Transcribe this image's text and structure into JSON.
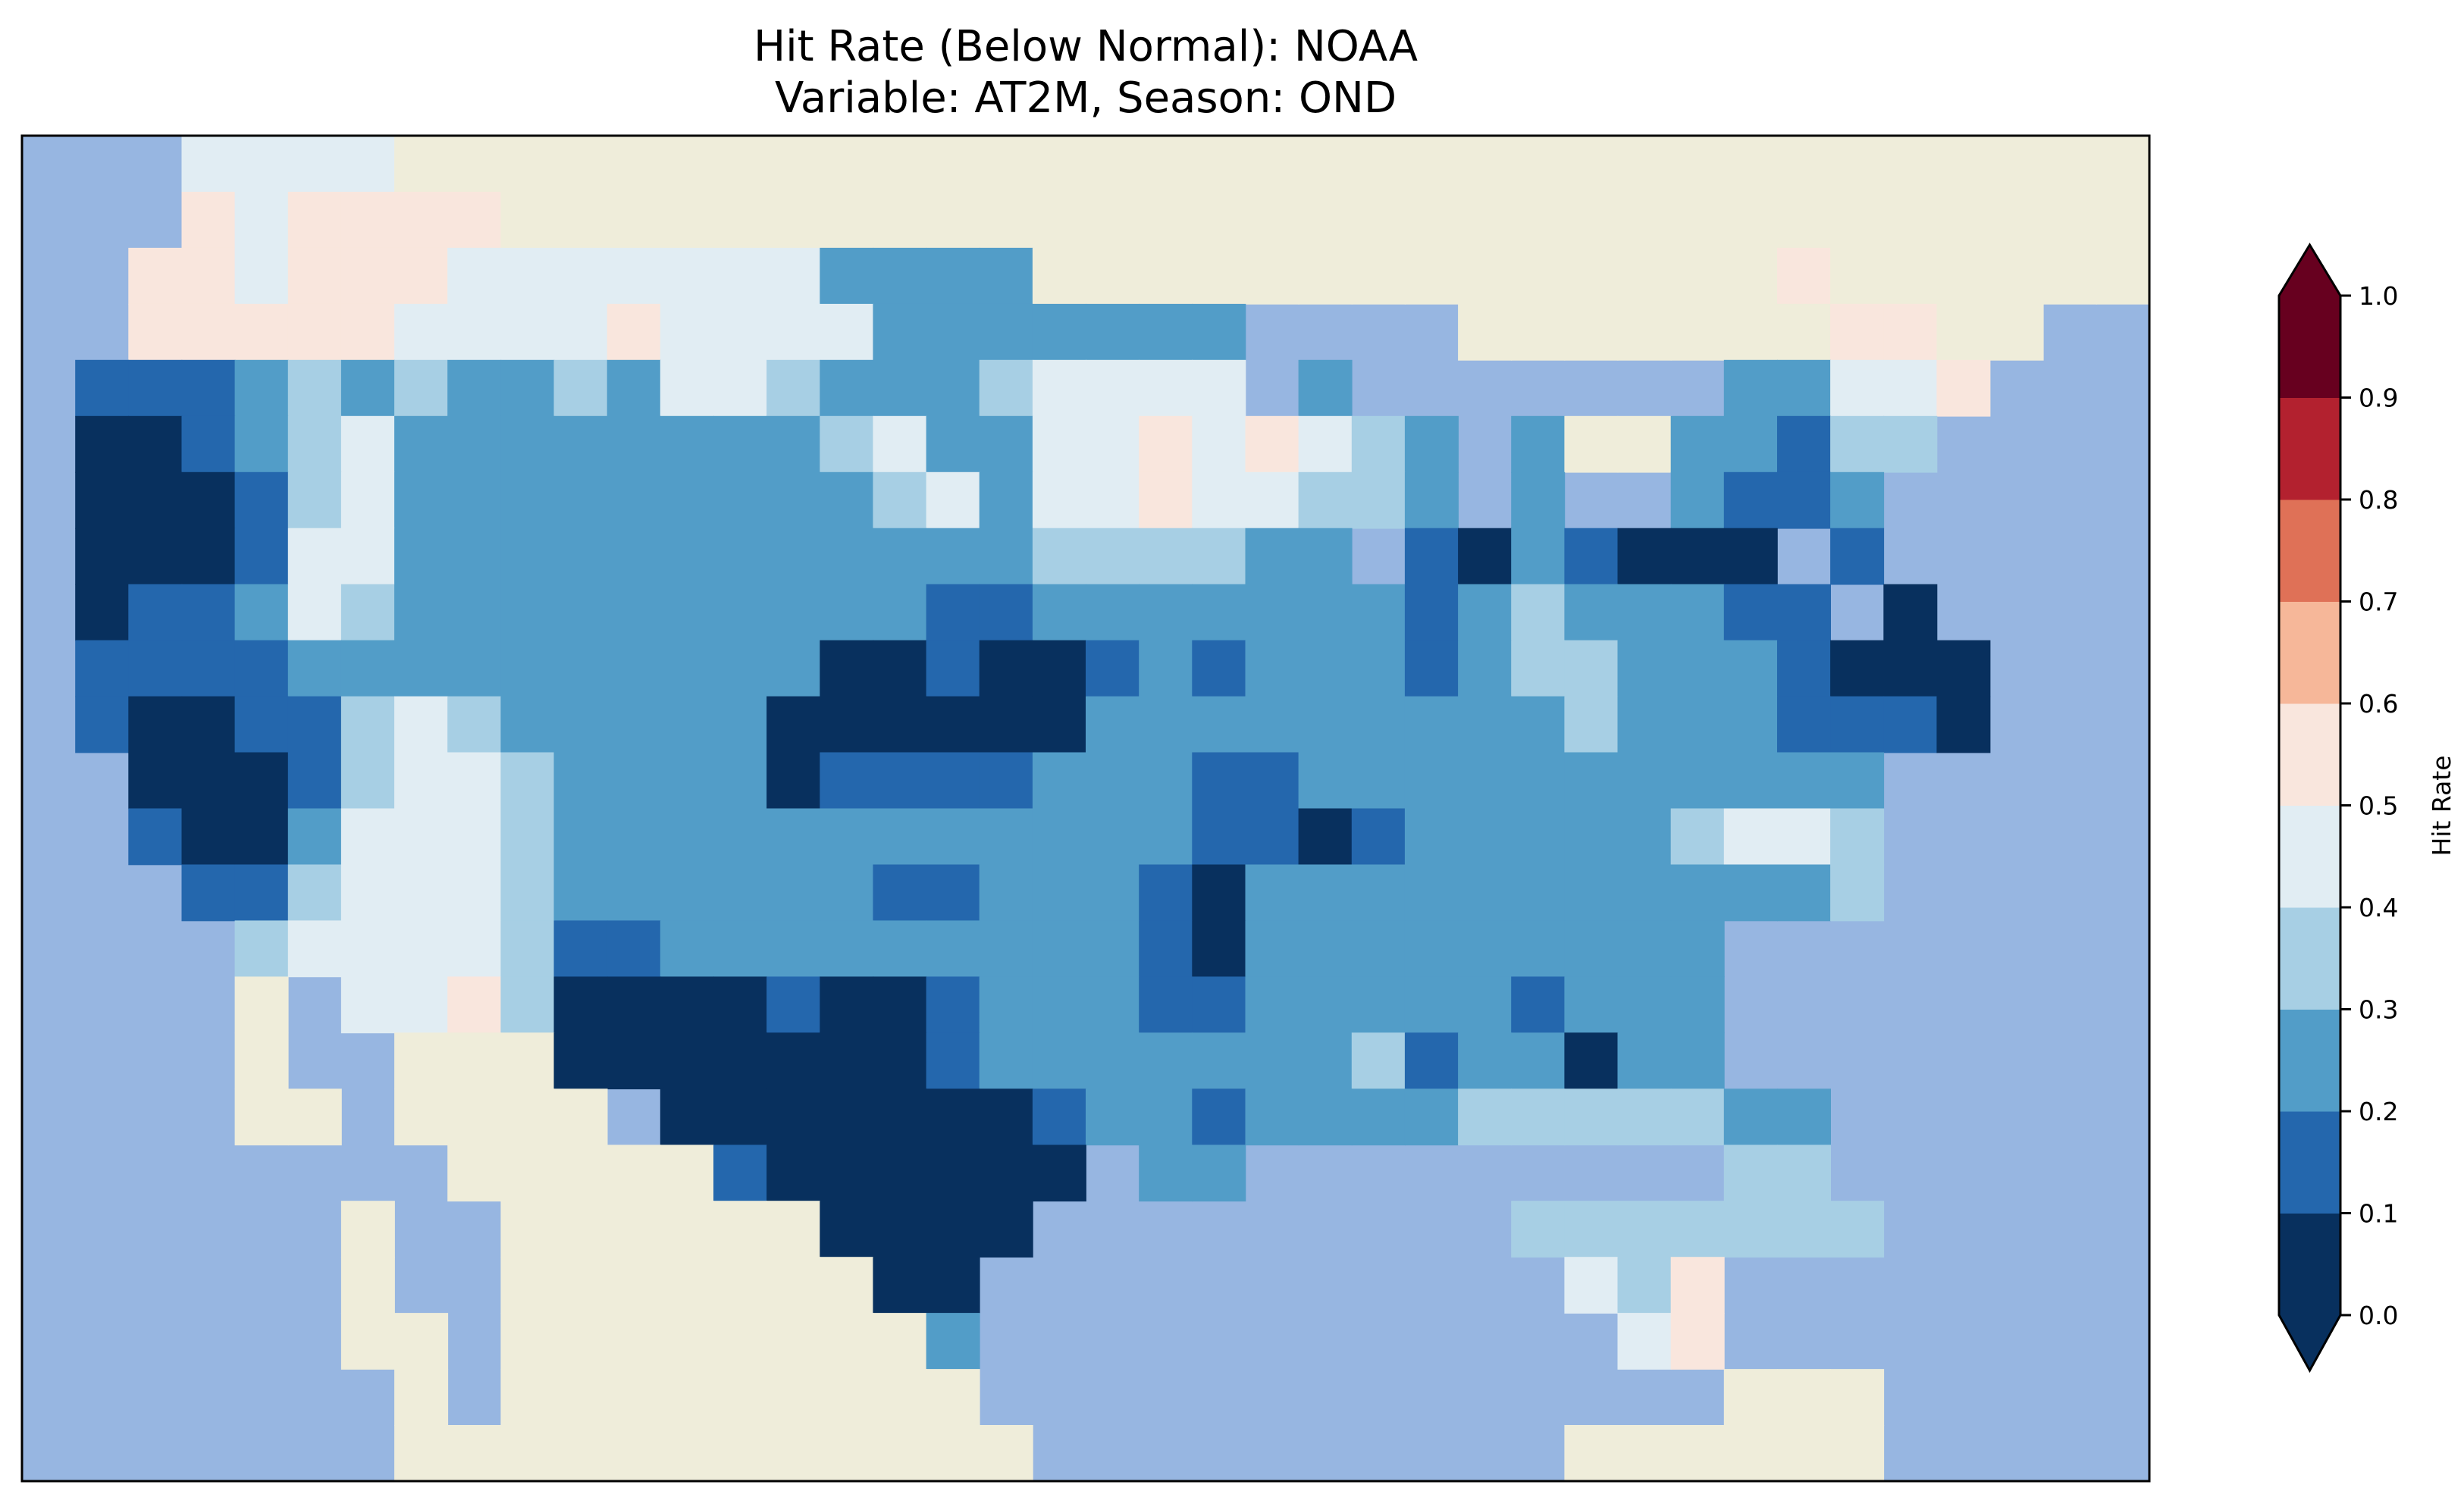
{
  "title": {
    "line1": "Hit Rate (Below Normal): NOAA",
    "line2": "Variable: AT2M, Season: OND"
  },
  "colors": {
    "ocean": "#97b6e1",
    "land": "#efedda",
    "bins": [
      "#08305e",
      "#2467ad",
      "#529dc8",
      "#a7cfe4",
      "#e1edf3",
      "#f9e6dd",
      "#f6b799",
      "#df7157",
      "#b3212f",
      "#67001f"
    ]
  },
  "colorbar": {
    "label": "Hit Rate",
    "ticks": [
      "0.0",
      "0.1",
      "0.2",
      "0.3",
      "0.4",
      "0.5",
      "0.6",
      "0.7",
      "0.8",
      "0.9",
      "1.0"
    ],
    "extend": "both"
  },
  "chart_data": {
    "type": "heatmap",
    "title": "Hit Rate (Below Normal): NOAA / Variable: AT2M, Season: OND",
    "colorbar_label": "Hit Rate",
    "levels": [
      0.0,
      0.1,
      0.2,
      0.3,
      0.4,
      0.5,
      0.6,
      0.7,
      0.8,
      0.9,
      1.0
    ],
    "grid_legend": "digit d = hit rate bin [d/10,(d+1)/10); '.' = water; '-' = land outside data",
    "grid_rows": [
      "...4444---------------------------------.",
      "...545555-------------------------------.",
      "..55455544444442222--------------5------.",
      "..555554444544442222222....-------55--..",
      ".1112323223244322234444.2.......22445...",
      ".00123422222222342244545432.2--22133....",
      ".00013422222222234244544332.2..2112.....",
      ".000144222222222222333322.1021000.1.....",
      ".011243222222222211222222212322211.0....",
      ".111122222222220010012122212332221000...",
      ".100113432222200000022222222232221110...",
      "..000134432222011112221122222222222.....",
      "..100244432222222222221101222223443.....",
      "...11344432222221122210222222222223.....",
      "....3444431122222222210222222222........",
      "....-.44530000100122211222221222........",
      "....-..---0000000122222223122022........",
      "....--.----.0000000122122223333322......",
      "....._..-----1000000.22.........33......",
      "....._-..------0000.........3333333.....",
      "......-..-------00...........435........",
      "......--.--------2............45........",
      ".......-.---------..............---.....",
      ".......------------..........------....."
    ]
  }
}
